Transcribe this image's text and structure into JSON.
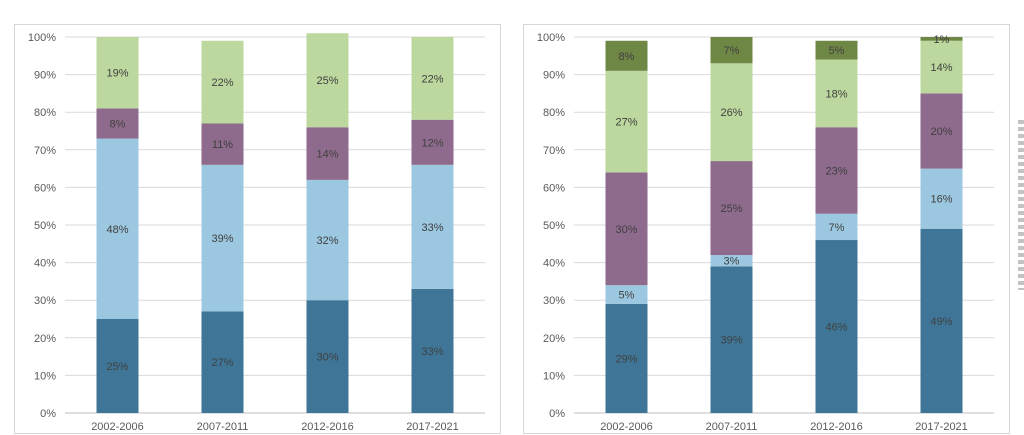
{
  "chart_data": [
    {
      "type": "bar",
      "stacked": true,
      "title": "",
      "xlabel": "",
      "ylabel": "",
      "ylim": [
        0,
        100
      ],
      "yticks": [
        "0%",
        "10%",
        "20%",
        "30%",
        "40%",
        "50%",
        "60%",
        "70%",
        "80%",
        "90%",
        "100%"
      ],
      "categories": [
        "2002-2006",
        "2007-2011",
        "2012-2016",
        "2017-2021"
      ],
      "grid": true,
      "series": [
        {
          "color": "#3f7697",
          "values": [
            25,
            27,
            30,
            33
          ],
          "labels": [
            "25%",
            "27%",
            "30%",
            "33%"
          ]
        },
        {
          "color": "#9cc7e0",
          "values": [
            48,
            39,
            32,
            33
          ],
          "labels": [
            "48%",
            "39%",
            "32%",
            "33%"
          ]
        },
        {
          "color": "#8e6a8c",
          "values": [
            8,
            11,
            14,
            12
          ],
          "labels": [
            "8%",
            "11%",
            "14%",
            "12%"
          ]
        },
        {
          "color": "#bcd89e",
          "values": [
            19,
            22,
            25,
            22
          ],
          "labels": [
            "19%",
            "22%",
            "25%",
            "22%"
          ]
        }
      ]
    },
    {
      "type": "bar",
      "stacked": true,
      "title": "",
      "xlabel": "",
      "ylabel": "",
      "ylim": [
        0,
        100
      ],
      "yticks": [
        "0%",
        "10%",
        "20%",
        "30%",
        "40%",
        "50%",
        "60%",
        "70%",
        "80%",
        "90%",
        "100%"
      ],
      "categories": [
        "2002-2006",
        "2007-2011",
        "2012-2016",
        "2017-2021"
      ],
      "grid": true,
      "series": [
        {
          "color": "#3f7697",
          "values": [
            29,
            39,
            46,
            49
          ],
          "labels": [
            "29%",
            "39%",
            "46%",
            "49%"
          ]
        },
        {
          "color": "#9cc7e0",
          "values": [
            5,
            3,
            7,
            16
          ],
          "labels": [
            "5%",
            "3%",
            "7%",
            "16%"
          ]
        },
        {
          "color": "#8e6a8c",
          "values": [
            30,
            25,
            23,
            20
          ],
          "labels": [
            "30%",
            "25%",
            "23%",
            "20%"
          ]
        },
        {
          "color": "#bcd89e",
          "values": [
            27,
            26,
            18,
            14
          ],
          "labels": [
            "27%",
            "26%",
            "18%",
            "14%"
          ]
        },
        {
          "color": "#6f8745",
          "values": [
            8,
            7,
            5,
            1
          ],
          "labels": [
            "8%",
            "7%",
            "5%",
            "1%"
          ]
        }
      ]
    }
  ]
}
